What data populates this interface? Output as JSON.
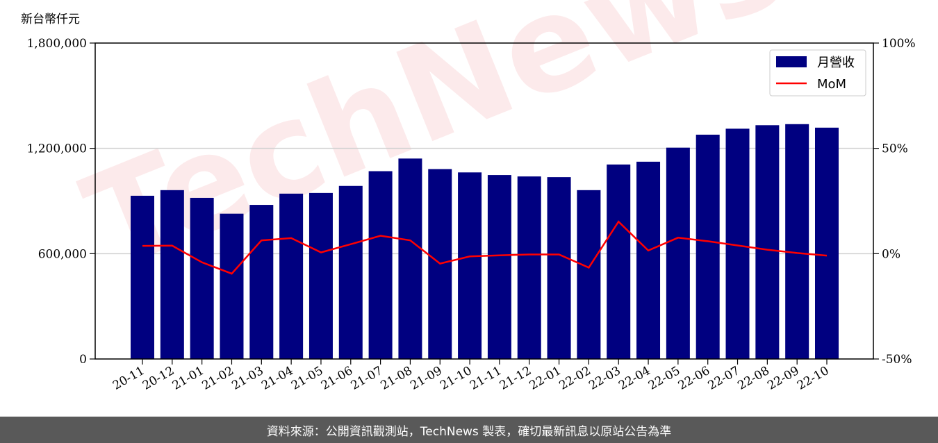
{
  "chart_data": {
    "type": "bar",
    "y_unit_label": "新台幣仟元",
    "categories": [
      "20-11",
      "20-12",
      "21-01",
      "21-02",
      "21-03",
      "21-04",
      "21-05",
      "21-06",
      "21-07",
      "21-08",
      "21-09",
      "21-10",
      "21-11",
      "21-12",
      "22-01",
      "22-02",
      "22-03",
      "22-04",
      "22-05",
      "22-06",
      "22-07",
      "22-08",
      "22-09",
      "22-10"
    ],
    "series": [
      {
        "name": "月營收",
        "type": "bar",
        "axis": "left",
        "color": "#000080",
        "values": [
          930000,
          962000,
          918000,
          828000,
          878000,
          942000,
          946000,
          986000,
          1070000,
          1142000,
          1082000,
          1063000,
          1048000,
          1040000,
          1036000,
          962000,
          1108000,
          1124000,
          1204000,
          1278000,
          1312000,
          1332000,
          1338000,
          1318000
        ]
      },
      {
        "name": "MoM",
        "type": "line",
        "axis": "right",
        "color": "#ff0000",
        "values": [
          3.7,
          3.8,
          -4.1,
          -9.5,
          6.3,
          7.4,
          0.6,
          4.5,
          8.5,
          6.3,
          -4.7,
          -1.3,
          -0.8,
          -0.4,
          -0.4,
          -6.6,
          15.2,
          1.5,
          7.6,
          5.9,
          3.9,
          1.9,
          0.3,
          -0.9
        ]
      }
    ],
    "y_left": {
      "min": 0,
      "max": 1800000,
      "ticks": [
        "0",
        "600,000",
        "1,200,000",
        "1,800,000"
      ]
    },
    "y_right": {
      "min": -50,
      "max": 100,
      "ticks": [
        "-50%",
        "0%",
        "50%",
        "100%"
      ]
    },
    "grid": "horizontal",
    "legend": "top-right"
  },
  "watermark": "TechNews",
  "footer": {
    "source": "資料來源：公開資訊觀測站，TechNews 製表，確切最新訊息以原站公告為準"
  }
}
